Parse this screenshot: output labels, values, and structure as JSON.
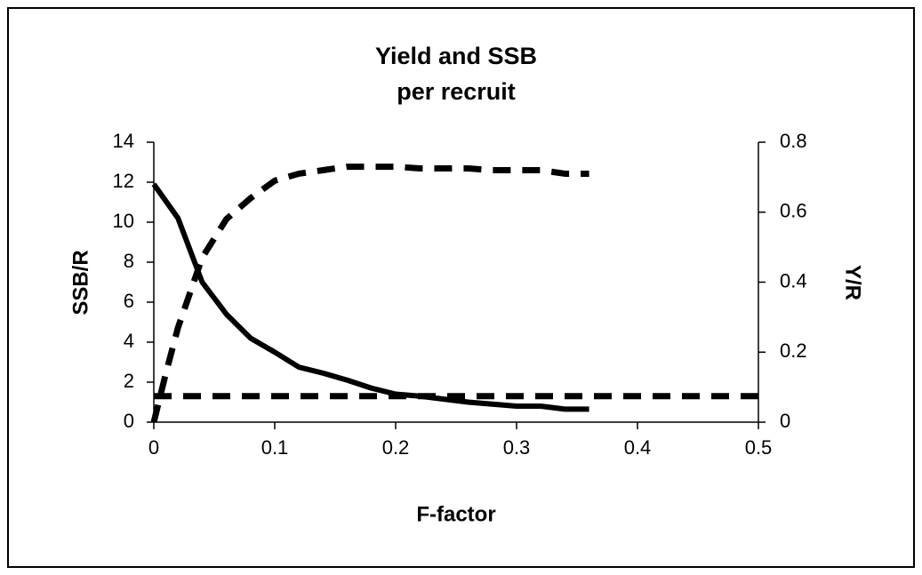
{
  "chart_data": {
    "type": "line",
    "title": [
      "Yield and SSB",
      "per recruit"
    ],
    "x_label": "F-factor",
    "y_label": "SSB/R",
    "y2_label": "Y/R",
    "xlim": [
      0,
      0.5
    ],
    "xticks": [
      0,
      0.1,
      0.2,
      0.3,
      0.4,
      0.5
    ],
    "ylim": [
      0,
      14
    ],
    "yticks": [
      0,
      2,
      4,
      6,
      8,
      10,
      12,
      14
    ],
    "y2lim": [
      0,
      0.8
    ],
    "y2ticks": [
      0,
      0.2,
      0.4,
      0.6,
      0.8
    ],
    "series": [
      {
        "color": "#000000",
        "dashed": false,
        "x": [
          0,
          0.02,
          0.04,
          0.06,
          0.08,
          0.1,
          0.12,
          0.14,
          0.16,
          0.18,
          0.2,
          0.22,
          0.24,
          0.26,
          0.28,
          0.3,
          0.32,
          0.34,
          0.36
        ],
        "values": [
          11.9,
          10.2,
          7.0,
          5.4,
          4.2,
          3.5,
          2.75,
          2.45,
          2.1,
          1.7,
          1.4,
          1.3,
          1.15,
          1.0,
          0.9,
          0.8,
          0.8,
          0.65,
          0.65
        ]
      },
      {
        "color": "#000000",
        "dashed": true,
        "axis": "y2",
        "x": [
          0,
          0.01,
          0.02,
          0.04,
          0.06,
          0.08,
          0.1,
          0.12,
          0.14,
          0.16,
          0.18,
          0.2,
          0.22,
          0.24,
          0.26,
          0.28,
          0.3,
          0.32,
          0.34,
          0.36
        ],
        "values": [
          0,
          0.14,
          0.27,
          0.47,
          0.58,
          0.64,
          0.69,
          0.71,
          0.72,
          0.73,
          0.73,
          0.73,
          0.725,
          0.725,
          0.725,
          0.72,
          0.72,
          0.72,
          0.71,
          0.71
        ]
      },
      {
        "color": "#000000",
        "dashed": true,
        "x": [
          0,
          0.5
        ],
        "values": [
          1.3,
          1.3
        ]
      }
    ]
  }
}
